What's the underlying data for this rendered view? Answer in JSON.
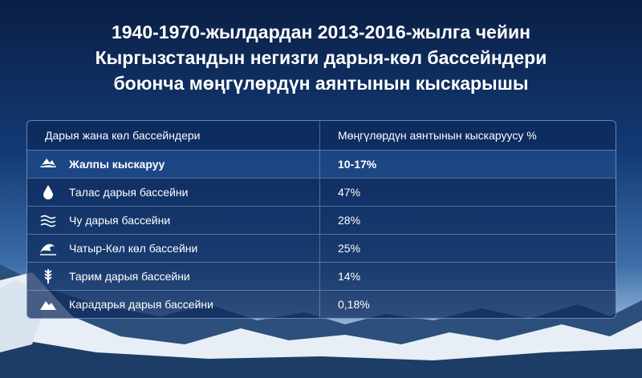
{
  "header": {
    "title_lines": [
      "1940-1970-жылдардан 2013-2016-жылга чейин",
      "Кыргызстандын негизги дарыя-көл бассейндери",
      "боюнча мөңгүлөрдүн аянтынын кыскарышы"
    ]
  },
  "table": {
    "columns": [
      "Дарыя жана көл бассейндери",
      "Мөңгүлөрдүн аянтынын кыскаруусу %"
    ],
    "rows": [
      [
        "Жалпы кыскаруу",
        "10-17%"
      ],
      [
        "Талас дарыя бассейни",
        "47%"
      ],
      [
        "Чу дарыя бассейни",
        "28%"
      ],
      [
        "Чатыр-Көл көл бассейни",
        "25%"
      ],
      [
        "Тарим дарыя бассейни",
        "14%"
      ],
      [
        "Карадарья дарыя бассейни",
        "0,18%"
      ]
    ]
  }
}
